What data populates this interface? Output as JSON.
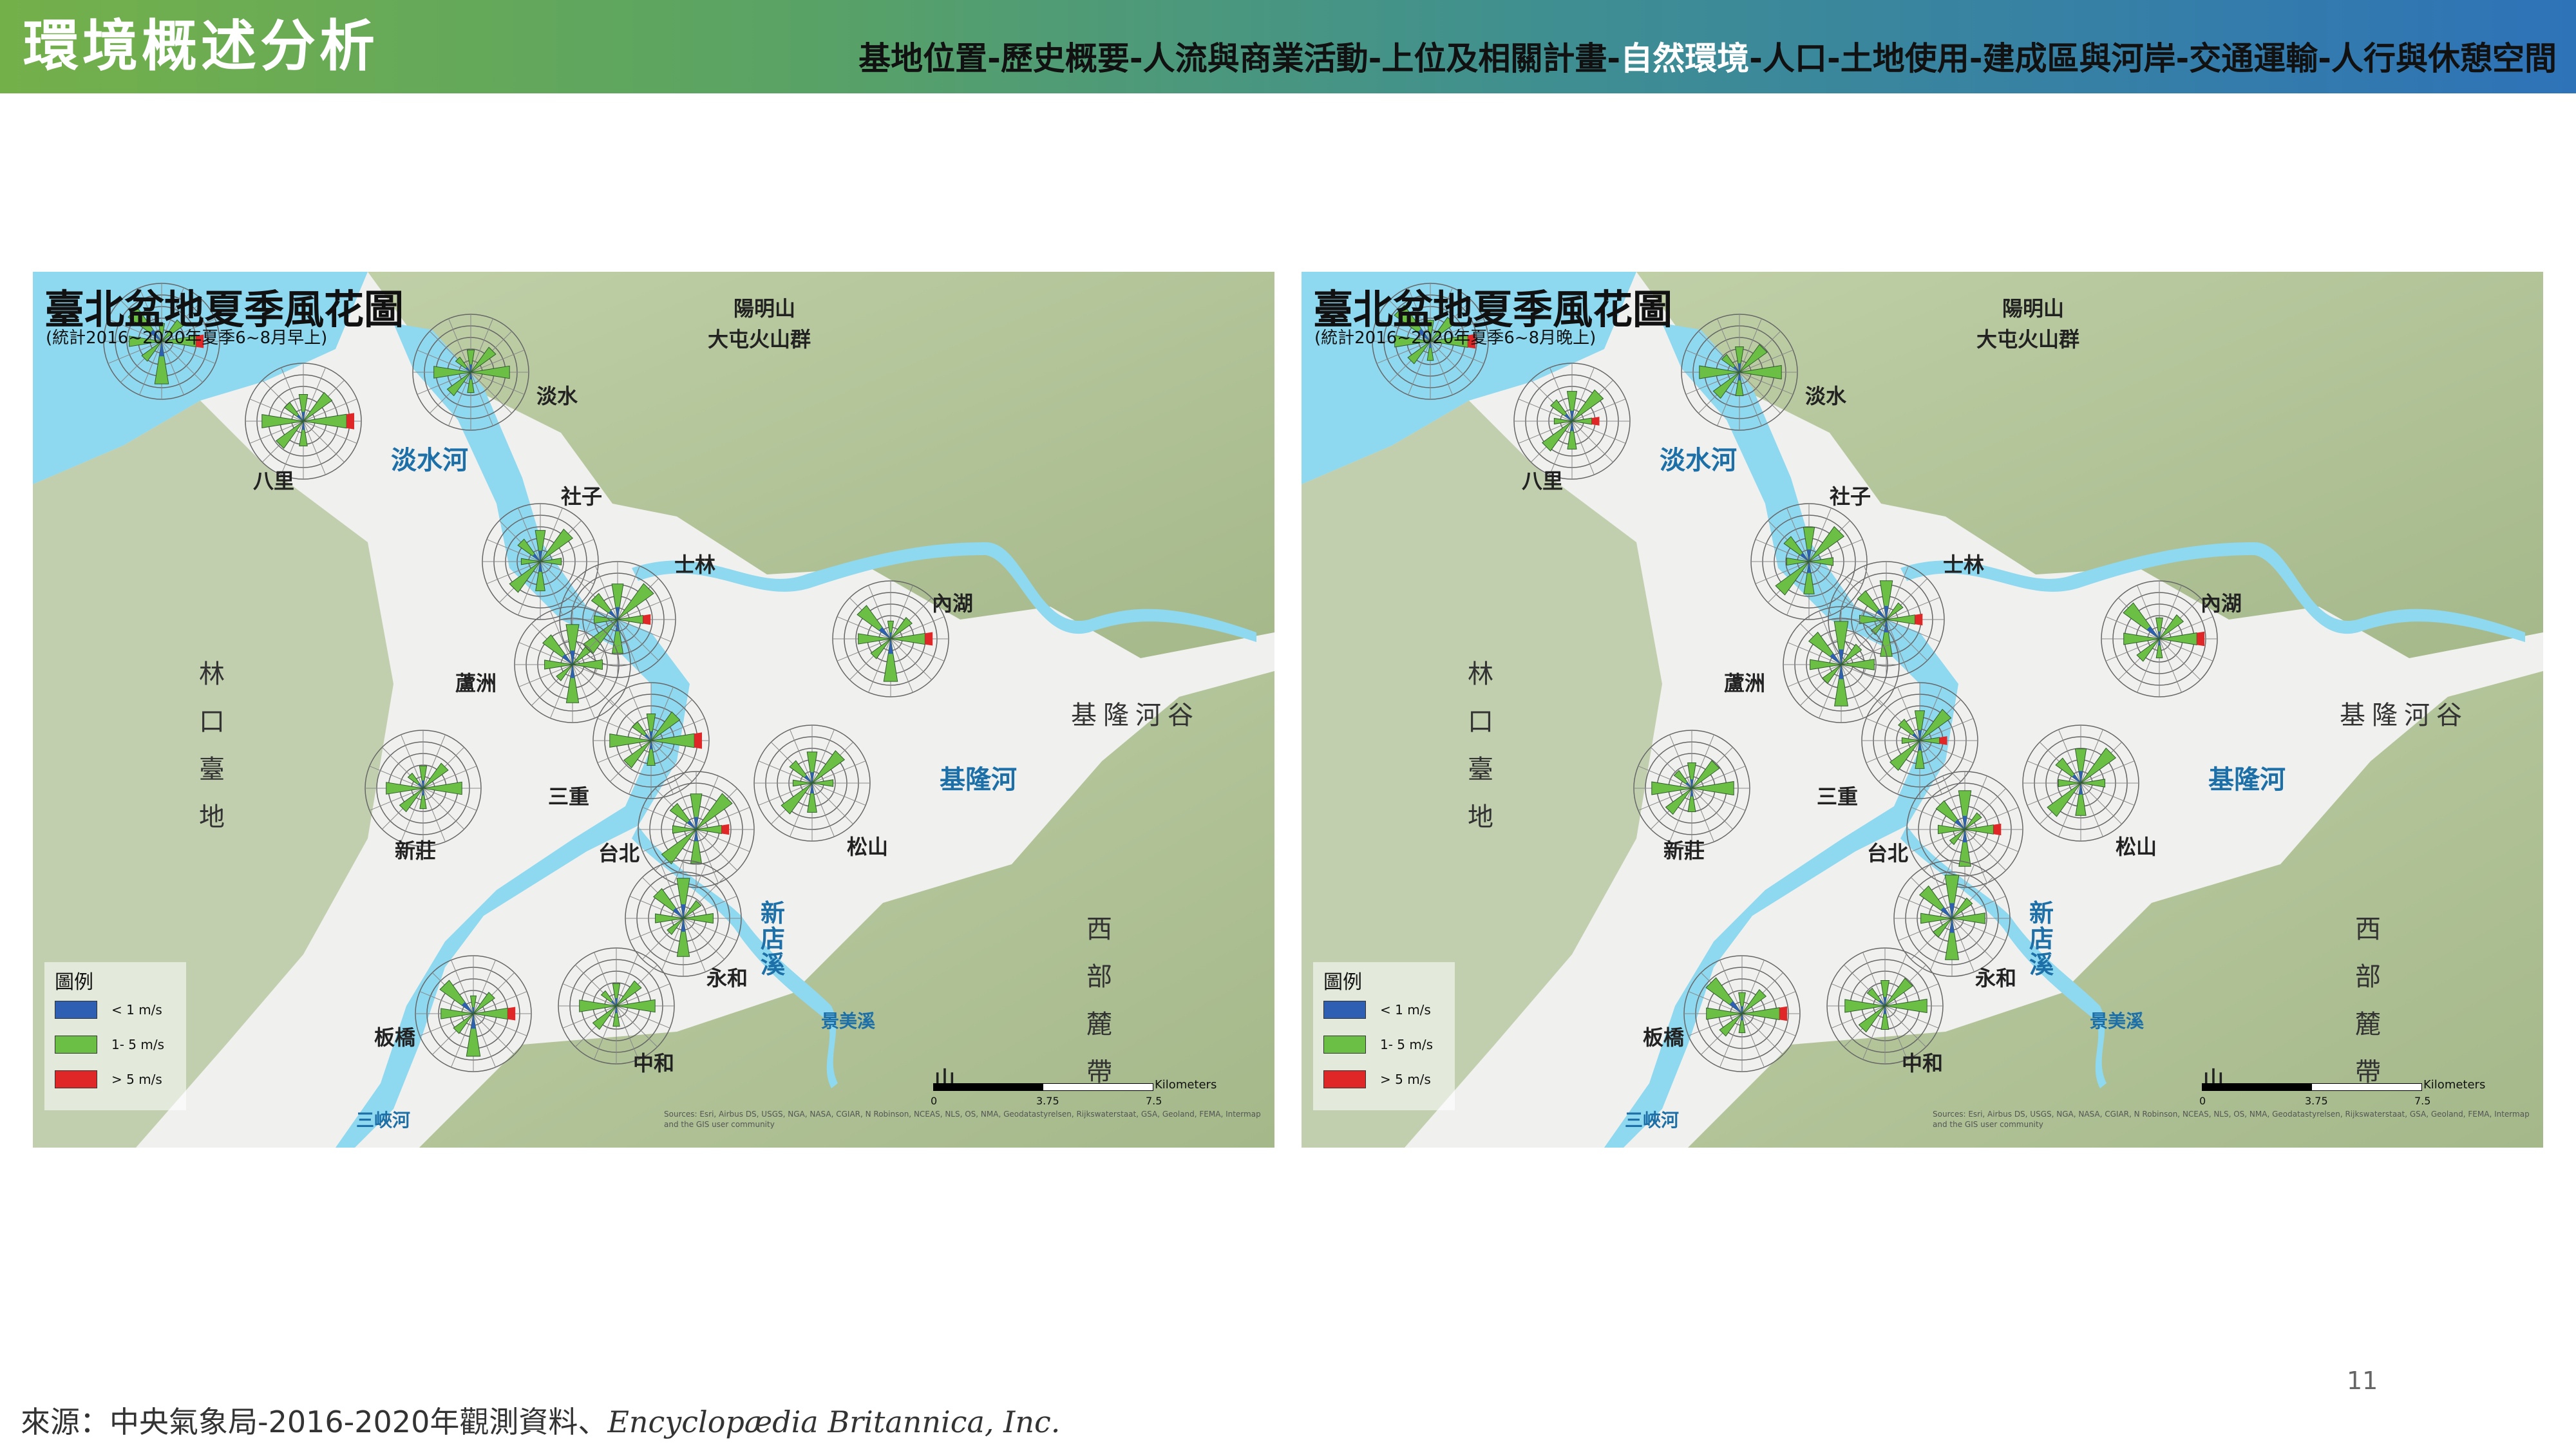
{
  "header": {
    "title": "環境概述分析",
    "nav": [
      "基地位置",
      "歷史概要",
      "人流與商業活動",
      "上位及相關計畫",
      "自然環境",
      "人口",
      "土地使用",
      "建成區與河岸",
      "交通運輸",
      "人行與休憩空間"
    ],
    "active_index": 4,
    "separator": "-"
  },
  "maps": [
    {
      "title": "臺北盆地夏季風花圖",
      "subtitle": "(統計2016~2020年夏季6~8月早上)"
    },
    {
      "title": "臺北盆地夏季風花圖",
      "subtitle": "(統計2016~2020年夏季6~8月晚上)"
    }
  ],
  "places": {
    "yangmingshan": "陽明山",
    "datun": "大屯火山群",
    "tamsui": "淡水",
    "tamsui_river": "淡水河",
    "bali": "八里",
    "shezi": "社子",
    "shilin": "士林",
    "neihu": "內湖",
    "luzhou": "蘆洲",
    "linkou": "林口臺地",
    "keelung_valley": "基隆河谷",
    "keelung_river": "基隆河",
    "sanchong": "三重",
    "xinzhuang": "新莊",
    "taipei": "台北",
    "songshan": "松山",
    "xindian_river": "新店溪",
    "west_foothills": "西部麓帶",
    "yonghe": "永和",
    "banqiao": "板橋",
    "jingmei": "景美溪",
    "zhonghe": "中和",
    "shan": "山",
    "sanxia": "三峽河"
  },
  "legend": {
    "title": "圖例",
    "items": [
      {
        "label": "< 1 m/s",
        "color": "#2f5fb3"
      },
      {
        "label": "1- 5 m/s",
        "color": "#6cbf45"
      },
      {
        "label": "> 5 m/s",
        "color": "#e02727"
      }
    ]
  },
  "scale": {
    "unit": "Kilometers",
    "ticks": [
      "0",
      "3.75",
      "7.5"
    ]
  },
  "attribution": "Sources: Esri, Airbus DS, USGS, NGA, NASA, CGIAR, N Robinson, NCEAS, NLS, OS, NMA, Geodatastyrelsen, Rijkswaterstaat, GSA, Geoland, FEMA, Intermap and the GIS user community",
  "colors": {
    "water": "#8ed8f0",
    "lowland": "#eef0ee",
    "mountain": "#a7bd86",
    "calm": "#2f5fb3",
    "moderate": "#6cbf45",
    "strong": "#e02727"
  },
  "page_number": "11",
  "source": {
    "text": "來源：中央氣象局-2016-2020年觀測資料、",
    "italic": "Encyclopædia Britannica, Inc."
  }
}
